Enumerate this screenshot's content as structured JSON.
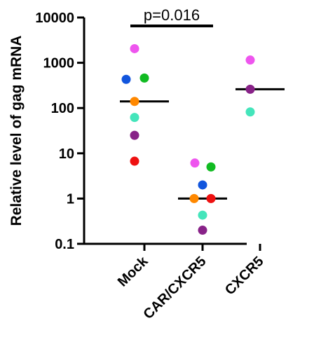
{
  "chart_data": {
    "type": "scatter",
    "ylabel": "Relative level of gag mRNA",
    "yscale": "log",
    "ylim": [
      0.1,
      10000
    ],
    "yticks": [
      0.1,
      1,
      10,
      100,
      1000,
      10000
    ],
    "ytick_labels": [
      "0.1",
      "1",
      "10",
      "100",
      "1000",
      "10000"
    ],
    "categories": [
      "Mock",
      "CAR/CXCR5",
      "CXCR5"
    ],
    "annotation": {
      "text": "p=0.016",
      "between": [
        "Mock",
        "CAR/CXCR5"
      ]
    },
    "medians": [
      140,
      1.0,
      260
    ],
    "points": [
      {
        "category": "Mock",
        "y": 2050,
        "color": "#ee55ee"
      },
      {
        "category": "Mock",
        "y": 430,
        "color": "#1155dd"
      },
      {
        "category": "Mock",
        "y": 460,
        "color": "#11bb22"
      },
      {
        "category": "Mock",
        "y": 140,
        "color": "#ff8800"
      },
      {
        "category": "Mock",
        "y": 62,
        "color": "#44e5bb"
      },
      {
        "category": "Mock",
        "y": 25,
        "color": "#882288"
      },
      {
        "category": "Mock",
        "y": 6.7,
        "color": "#ee1111"
      },
      {
        "category": "CAR/CXCR5",
        "y": 6.1,
        "color": "#ee55ee"
      },
      {
        "category": "CAR/CXCR5",
        "y": 5.0,
        "color": "#11bb22"
      },
      {
        "category": "CAR/CXCR5",
        "y": 2.0,
        "color": "#1155dd"
      },
      {
        "category": "CAR/CXCR5",
        "y": 1.0,
        "color": "#ff8800"
      },
      {
        "category": "CAR/CXCR5",
        "y": 1.0,
        "color": "#ee1111"
      },
      {
        "category": "CAR/CXCR5",
        "y": 0.43,
        "color": "#44e5bb"
      },
      {
        "category": "CAR/CXCR5",
        "y": 0.2,
        "color": "#882288"
      },
      {
        "category": "CXCR5",
        "y": 1150,
        "color": "#ee55ee"
      },
      {
        "category": "CXCR5",
        "y": 260,
        "color": "#882288"
      },
      {
        "category": "CXCR5",
        "y": 82,
        "color": "#44e5bb"
      }
    ]
  }
}
